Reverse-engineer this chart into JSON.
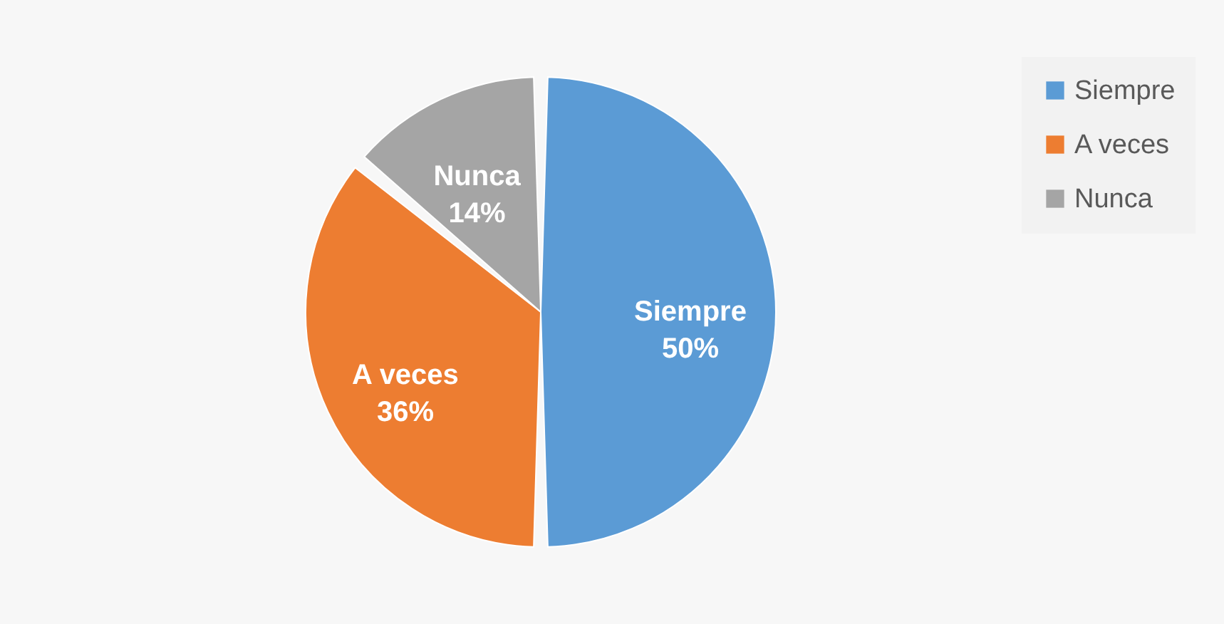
{
  "chart_data": {
    "type": "pie",
    "categories": [
      "Siempre",
      "A veces",
      "Nunca"
    ],
    "values": [
      50,
      36,
      14
    ],
    "colors": [
      "#5b9bd5",
      "#ed7d31",
      "#a5a5a5"
    ],
    "value_labels": [
      "50%",
      "36%",
      "14%"
    ],
    "legend": "right"
  }
}
